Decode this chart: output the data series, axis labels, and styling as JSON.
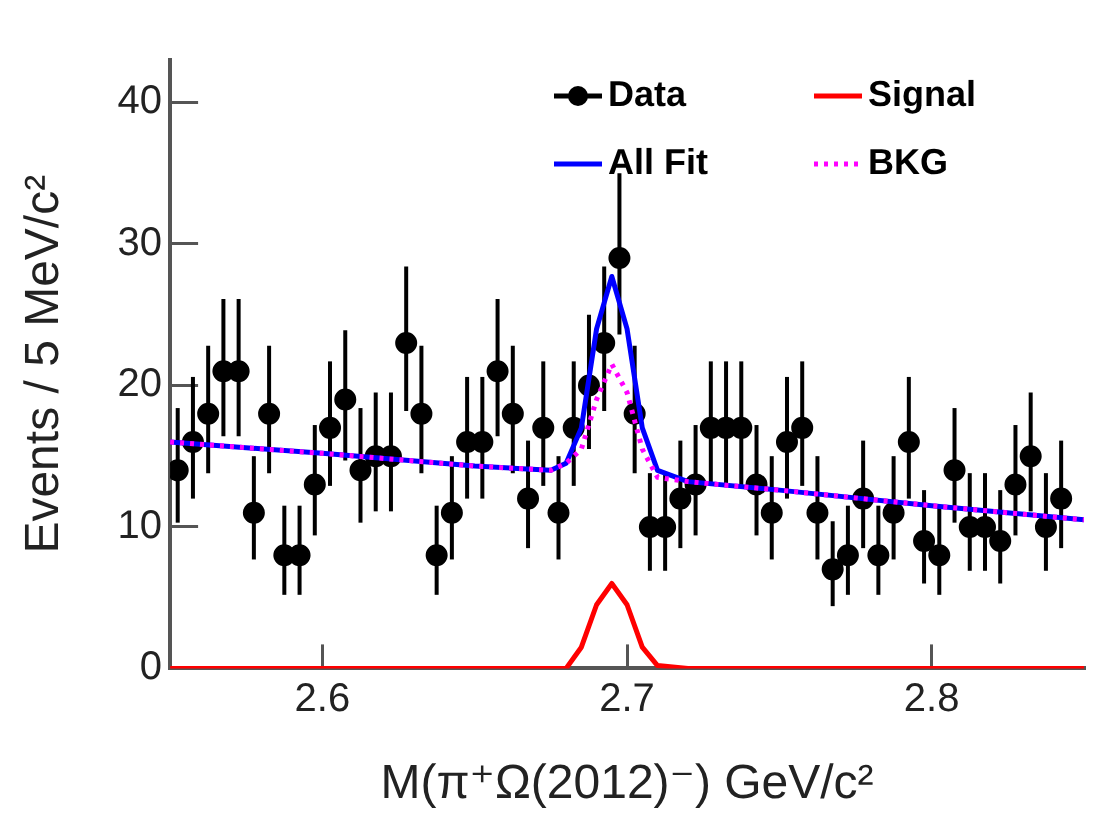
{
  "chart_data": {
    "type": "scatter",
    "xlabel": "M(π⁺Ω(2012)⁻) GeV/c²",
    "ylabel": "Events / 5 MeV/c²",
    "xlim": [
      2.55,
      2.85
    ],
    "xticks": [
      2.6,
      2.7,
      2.8
    ],
    "ylim": [
      0,
      43
    ],
    "yticks": [
      0,
      10,
      20,
      30,
      40
    ],
    "grid": false,
    "legend": "top right",
    "series": [
      {
        "name": "Data",
        "color": "#000000",
        "marker": "circle",
        "x": [
          2.5525,
          2.5575,
          2.5625,
          2.5675,
          2.5725,
          2.5775,
          2.5825,
          2.5875,
          2.5925,
          2.5975,
          2.6025,
          2.6075,
          2.6125,
          2.6175,
          2.6225,
          2.6275,
          2.6325,
          2.6375,
          2.6425,
          2.6475,
          2.6525,
          2.6575,
          2.6625,
          2.6675,
          2.6725,
          2.6775,
          2.6825,
          2.6875,
          2.6925,
          2.6975,
          2.7025,
          2.7075,
          2.7125,
          2.7175,
          2.7225,
          2.7275,
          2.7325,
          2.7375,
          2.7425,
          2.7475,
          2.7525,
          2.7575,
          2.7625,
          2.7675,
          2.7725,
          2.7775,
          2.7825,
          2.7875,
          2.7925,
          2.7975,
          2.8025,
          2.8075,
          2.8125,
          2.8175,
          2.8225,
          2.8275,
          2.8325,
          2.8375,
          2.8425
        ],
        "values": [
          14,
          16,
          18,
          21,
          21,
          11,
          18,
          8,
          8,
          13,
          17,
          19,
          14,
          15,
          15,
          23,
          18,
          8,
          11,
          16,
          16,
          21,
          18,
          12,
          17,
          11,
          17,
          20,
          23,
          29,
          18,
          10,
          10,
          12,
          13,
          17,
          17,
          17,
          13,
          11,
          16,
          17,
          11,
          7,
          8,
          12,
          8,
          11,
          16,
          9,
          8,
          14,
          10,
          10,
          9,
          13,
          15,
          10,
          12
        ],
        "errors": [
          [
            10.3,
            18.4
          ],
          [
            12,
            20.6
          ],
          [
            13.8,
            22.8
          ],
          [
            16.4,
            26.1
          ],
          [
            16.4,
            26.1
          ],
          [
            7.7,
            15
          ],
          [
            13.8,
            22.8
          ],
          [
            5.2,
            11.5
          ],
          [
            5.2,
            11.5
          ],
          [
            9.4,
            17.2
          ],
          [
            12.9,
            21.7
          ],
          [
            14.7,
            23.9
          ],
          [
            10.3,
            18.4
          ],
          [
            11.1,
            19.5
          ],
          [
            11.1,
            19.5
          ],
          [
            18.2,
            28.4
          ],
          [
            13.8,
            22.8
          ],
          [
            5.2,
            11.5
          ],
          [
            7.7,
            15
          ],
          [
            12,
            20.6
          ],
          [
            12,
            20.6
          ],
          [
            16.4,
            26.1
          ],
          [
            13.8,
            22.8
          ],
          [
            8.5,
            16.1
          ],
          [
            12.9,
            21.7
          ],
          [
            7.7,
            15
          ],
          [
            12.9,
            21.7
          ],
          [
            15.5,
            25
          ],
          [
            18.2,
            28.4
          ],
          [
            23.6,
            35
          ],
          [
            13.8,
            22.8
          ],
          [
            6.9,
            13.8
          ],
          [
            6.9,
            13.8
          ],
          [
            8.5,
            16.1
          ],
          [
            9.4,
            17.2
          ],
          [
            12.9,
            21.7
          ],
          [
            12.9,
            21.7
          ],
          [
            12.9,
            21.7
          ],
          [
            9.4,
            17.2
          ],
          [
            7.7,
            15
          ],
          [
            12,
            20.6
          ],
          [
            12.9,
            21.7
          ],
          [
            7.7,
            15
          ],
          [
            4.4,
            10.4
          ],
          [
            5.2,
            11.5
          ],
          [
            8.5,
            16.1
          ],
          [
            5.2,
            11.5
          ],
          [
            7.7,
            15
          ],
          [
            12,
            20.6
          ],
          [
            6,
            12.6
          ],
          [
            5.2,
            11.5
          ],
          [
            10.3,
            18.4
          ],
          [
            6.9,
            13.8
          ],
          [
            6.9,
            13.8
          ],
          [
            6,
            12.6
          ],
          [
            9.4,
            17.2
          ],
          [
            11.1,
            19.5
          ],
          [
            6.9,
            13.8
          ],
          [
            8.5,
            16.1
          ]
        ]
      },
      {
        "name": "Signal",
        "type": "line",
        "color": "#ff0000",
        "line_style": "solid",
        "marker": "none",
        "x": [
          2.55,
          2.68,
          2.685,
          2.69,
          2.695,
          2.7,
          2.705,
          2.71,
          2.72,
          2.85
        ],
        "values": [
          0,
          0,
          1.5,
          4.5,
          6,
          4.5,
          1.5,
          0.2,
          0,
          0
        ]
      },
      {
        "name": "All Fit",
        "type": "line",
        "color": "#0000ff",
        "line_style": "solid",
        "marker": "none",
        "x": [
          2.55,
          2.6,
          2.65,
          2.675,
          2.68,
          2.685,
          2.69,
          2.695,
          2.7,
          2.705,
          2.71,
          2.72,
          2.75,
          2.8,
          2.85
        ],
        "values": [
          16,
          15.2,
          14.3,
          14,
          14.5,
          17,
          24,
          27.7,
          24,
          17,
          14,
          13.2,
          12.6,
          11.5,
          10.5
        ]
      },
      {
        "name": "BKG",
        "type": "line",
        "color": "#ff00ff",
        "line_style": "dotted",
        "marker": "none",
        "x": [
          2.55,
          2.6,
          2.65,
          2.675,
          2.68,
          2.685,
          2.69,
          2.695,
          2.7,
          2.705,
          2.71,
          2.72,
          2.75,
          2.8,
          2.85
        ],
        "values": [
          16,
          15.2,
          14.3,
          14,
          14.5,
          15.5,
          19,
          21.5,
          19.5,
          15.5,
          13.5,
          13.2,
          12.6,
          11.5,
          10.5
        ]
      }
    ]
  }
}
